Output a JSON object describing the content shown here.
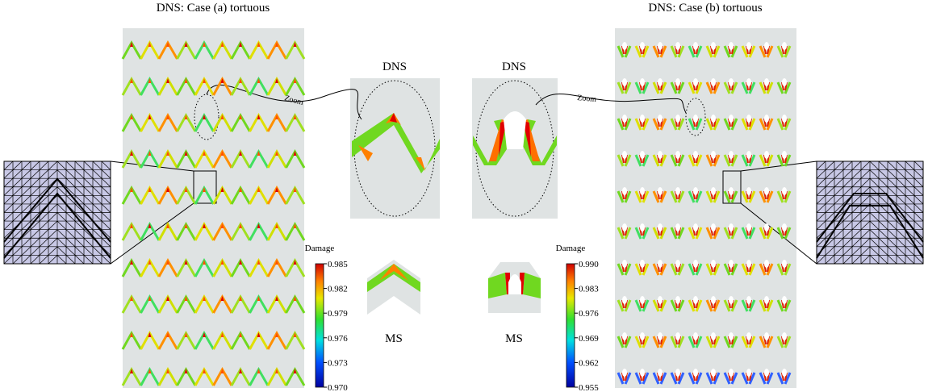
{
  "figure": {
    "panels": [
      {
        "title": "DNS: Case (a) tortuous",
        "zoom_title": "DNS",
        "zoom_label": "Zoom",
        "ms_label": "MS",
        "colorbar": {
          "title": "Damage",
          "ticks": [
            "0.985",
            "0.982",
            "0.979",
            "0.976",
            "0.973",
            "0.970"
          ]
        }
      },
      {
        "title": "DNS: Case (b) tortuous",
        "zoom_title": "DNS",
        "zoom_label": "Zoom",
        "ms_label": "MS",
        "colorbar": {
          "title": "Damage",
          "ticks": [
            "0.990",
            "0.983",
            "0.976",
            "0.969",
            "0.962",
            "0.955"
          ]
        }
      }
    ]
  }
}
